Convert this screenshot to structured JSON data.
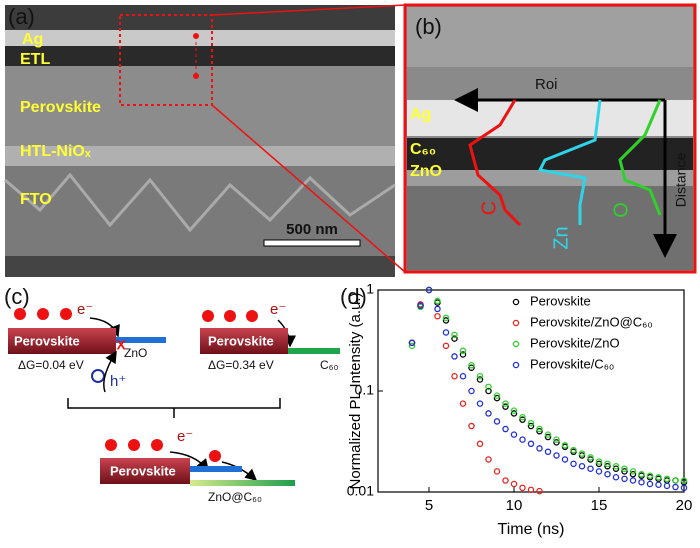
{
  "panels": {
    "a": {
      "label": "(a)",
      "layers": [
        "Ag",
        "ETL",
        "Perovskite",
        "HTL-NiOₓ",
        "FTO"
      ],
      "scale_bar": "500 nm"
    },
    "b": {
      "label": "(b)",
      "roi": "Roi",
      "distance": "Distance",
      "layers": [
        "Ag",
        "C₆₀",
        "ZnO"
      ],
      "profiles": [
        "C",
        "Zn",
        "O"
      ]
    },
    "c": {
      "label": "(c)",
      "electron": "e⁻",
      "hole": "h⁺",
      "blocked": "X",
      "left": {
        "absorber": "Perovskite",
        "contact": "ZnO",
        "energy": "ΔG=0.04 eV"
      },
      "right": {
        "absorber": "Perovskite",
        "contact": "C₆₀",
        "energy": "ΔG=0.34 eV"
      },
      "bottom": {
        "absorber": "Perovskite",
        "contact": "ZnO@C₆₀"
      }
    }
  },
  "chart_data": {
    "type": "scatter",
    "label": "(d)",
    "x_label": "Time (ns)",
    "y_label": "Normalized PL Intensity (a.u.)",
    "log_y": true,
    "legend": "upper right",
    "xlim": [
      2,
      20
    ],
    "xticks": [
      5,
      10,
      15,
      20
    ],
    "ylim": [
      0.01,
      1
    ],
    "yticks": [
      0.01,
      0.1,
      1
    ],
    "x": [
      4,
      4.5,
      5,
      5.5,
      6,
      6.5,
      7,
      7.5,
      8,
      8.5,
      9,
      9.5,
      10,
      10.5,
      11,
      11.5,
      12,
      12.5,
      13,
      13.5,
      14,
      14.5,
      15,
      15.5,
      16,
      16.5,
      17,
      17.5,
      18,
      18.5,
      19,
      19.5,
      20
    ],
    "series": [
      {
        "name": "Perovskite",
        "color": "#000000",
        "values": [
          0.3,
          0.7,
          1,
          0.75,
          0.5,
          0.33,
          0.23,
          0.17,
          0.13,
          0.1,
          0.085,
          0.07,
          0.06,
          0.052,
          0.045,
          0.04,
          0.035,
          0.031,
          0.028,
          0.025,
          0.023,
          0.021,
          0.019,
          0.018,
          0.017,
          0.016,
          0.015,
          0.0145,
          0.014,
          0.0135,
          0.013,
          0.013,
          0.0125
        ]
      },
      {
        "name": "Perovskite/ZnO@C₆₀",
        "color": "#e8231f",
        "values": [
          0.3,
          0.72,
          1,
          0.55,
          0.28,
          0.14,
          0.075,
          0.045,
          0.03,
          0.021,
          0.016,
          0.013,
          0.012,
          0.011,
          0.0105,
          0.0102,
          null,
          null,
          null,
          null,
          null,
          null,
          null,
          null,
          null,
          null,
          null,
          null,
          null,
          null,
          null,
          null,
          null
        ]
      },
      {
        "name": "Perovskite/ZnO",
        "color": "#2fd12a",
        "values": [
          0.28,
          0.68,
          1,
          0.78,
          0.53,
          0.36,
          0.25,
          0.18,
          0.14,
          0.11,
          0.09,
          0.075,
          0.064,
          0.055,
          0.048,
          0.042,
          0.037,
          0.033,
          0.029,
          0.026,
          0.024,
          0.022,
          0.02,
          0.019,
          0.018,
          0.017,
          0.016,
          0.015,
          0.0145,
          0.014,
          0.0135,
          0.013,
          0.013
        ]
      },
      {
        "name": "Perovskite/C₆₀",
        "color": "#1f2fd6",
        "values": [
          0.3,
          0.7,
          1,
          0.65,
          0.38,
          0.22,
          0.14,
          0.1,
          0.075,
          0.06,
          0.05,
          0.042,
          0.037,
          0.033,
          0.03,
          0.027,
          0.025,
          0.023,
          0.021,
          0.019,
          0.018,
          0.017,
          0.016,
          0.015,
          0.014,
          0.0135,
          0.013,
          0.0125,
          0.012,
          0.0118,
          0.0115,
          0.0112,
          0.011
        ]
      }
    ]
  }
}
